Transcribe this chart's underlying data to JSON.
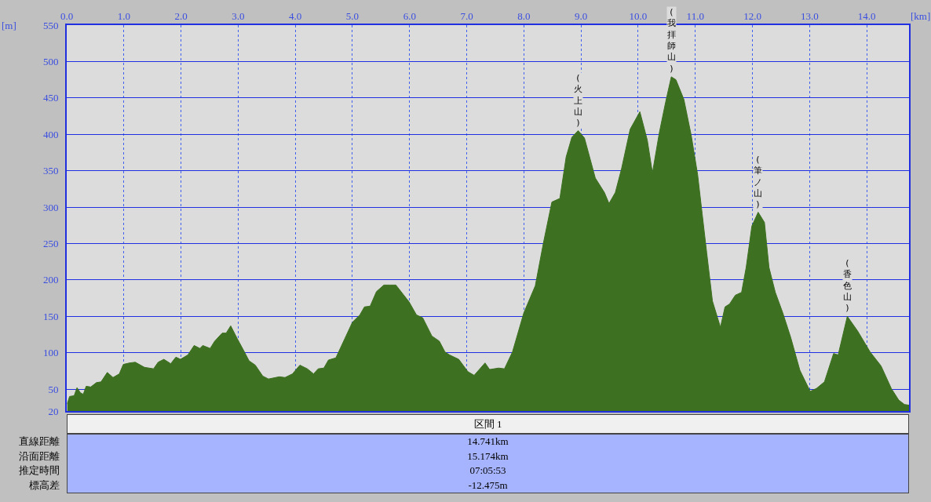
{
  "chart_data": {
    "type": "area",
    "xlabel": "[km]",
    "ylabel": "[m]",
    "x": [
      0.01,
      0.05,
      0.13,
      0.18,
      0.24,
      0.29,
      0.34,
      0.42,
      0.52,
      0.6,
      0.71,
      0.81,
      0.92,
      0.99,
      1.1,
      1.2,
      1.36,
      1.52,
      1.6,
      1.7,
      1.82,
      1.91,
      1.99,
      2.12,
      2.23,
      2.33,
      2.38,
      2.51,
      2.59,
      2.72,
      2.79,
      2.87,
      2.98,
      3.09,
      3.19,
      3.3,
      3.43,
      3.53,
      3.72,
      3.82,
      3.95,
      4.08,
      4.21,
      4.32,
      4.4,
      4.5,
      4.58,
      4.71,
      4.87,
      5.0,
      5.13,
      5.21,
      5.31,
      5.42,
      5.55,
      5.65,
      5.76,
      5.89,
      5.99,
      6.12,
      6.23,
      6.39,
      6.52,
      6.62,
      6.7,
      6.86,
      7.02,
      7.13,
      7.32,
      7.4,
      7.56,
      7.66,
      7.8,
      8.0,
      8.2,
      8.34,
      8.49,
      8.63,
      8.74,
      8.84,
      8.95,
      9.06,
      9.25,
      9.41,
      9.49,
      9.6,
      9.71,
      9.86,
      10.03,
      10.16,
      10.25,
      10.37,
      10.48,
      10.58,
      10.66,
      10.8,
      10.93,
      11.04,
      11.12,
      11.2,
      11.3,
      11.44,
      11.52,
      11.6,
      11.7,
      11.81,
      11.89,
      11.99,
      12.1,
      12.21,
      12.29,
      12.4,
      12.53,
      12.67,
      12.83,
      13.01,
      13.12,
      13.26,
      13.42,
      13.5,
      13.66,
      13.84,
      14.06,
      14.25,
      14.43,
      14.56,
      14.66,
      14.74
    ],
    "series": [
      {
        "color": "#3d7020",
        "values": [
          30,
          40,
          41,
          52,
          45,
          43,
          54,
          53,
          59,
          60,
          73,
          66,
          71,
          84,
          86,
          87,
          80,
          78,
          87,
          91,
          85,
          94,
          91,
          97,
          110,
          106,
          110,
          106,
          116,
          127,
          127,
          137,
          120,
          104,
          89,
          83,
          68,
          64,
          67,
          66,
          71,
          83,
          78,
          71,
          78,
          79,
          90,
          93,
          120,
          142,
          152,
          163,
          164,
          184,
          193,
          193,
          193,
          180,
          170,
          152,
          148,
          123,
          116,
          101,
          97,
          91,
          74,
          69,
          86,
          77,
          79,
          78,
          101,
          155,
          192,
          250,
          307,
          312,
          369,
          396,
          405,
          395,
          340,
          320,
          305,
          320,
          353,
          407,
          431,
          392,
          347,
          402,
          444,
          479,
          475,
          448,
          398,
          345,
          291,
          237,
          171,
          135,
          163,
          167,
          179,
          183,
          217,
          274,
          293,
          279,
          217,
          183,
          155,
          121,
          76,
          47,
          51,
          60,
          99,
          97,
          150,
          130,
          101,
          82,
          51,
          35,
          29,
          28
        ]
      }
    ],
    "xlim": [
      0,
      14.74
    ],
    "xticks": [
      {
        "value": 0,
        "label": "0.0"
      },
      {
        "value": 1,
        "label": "1.0"
      },
      {
        "value": 2,
        "label": "2.0"
      },
      {
        "value": 3,
        "label": "3.0"
      },
      {
        "value": 4,
        "label": "4.0"
      },
      {
        "value": 5,
        "label": "5.0"
      },
      {
        "value": 6,
        "label": "6.0"
      },
      {
        "value": 7,
        "label": "7.0"
      },
      {
        "value": 8,
        "label": "8.0"
      },
      {
        "value": 9,
        "label": "9.0"
      },
      {
        "value": 10,
        "label": "10.0"
      },
      {
        "value": 11,
        "label": "11.0"
      },
      {
        "value": 12,
        "label": "12.0"
      },
      {
        "value": 13,
        "label": "13.0"
      },
      {
        "value": 14,
        "label": "14.0"
      }
    ],
    "ylim": [
      20,
      550
    ],
    "yticks": [
      20,
      50,
      100,
      150,
      200,
      250,
      300,
      350,
      400,
      450,
      500,
      550
    ],
    "grid": true,
    "annotations": [
      {
        "text": "(火上山)",
        "x": 8.95,
        "y": 405
      },
      {
        "text": "(我拝師山)",
        "x": 10.58,
        "y": 479
      },
      {
        "text": "(筆ノ山)",
        "x": 12.1,
        "y": 293
      },
      {
        "text": "(香色山)",
        "x": 13.66,
        "y": 150
      },
      "区間 1",
      "直線距離",
      "14.741km",
      "沿面距離",
      "15.174km",
      "推定時間",
      "07:05:53",
      "標高差",
      "-12.475m"
    ]
  }
}
